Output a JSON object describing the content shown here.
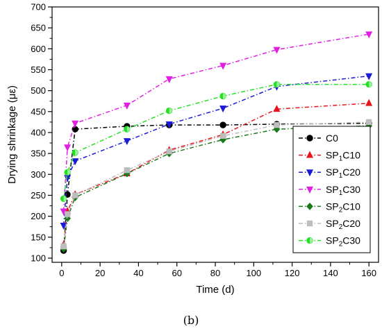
{
  "chart_data": {
    "type": "line",
    "title": "",
    "xlabel": "Time (d)",
    "ylabel": "Drying shrinkage (με)",
    "xlim": [
      -5,
      165
    ],
    "ylim": [
      90,
      700
    ],
    "xticks": [
      0,
      20,
      40,
      60,
      80,
      100,
      120,
      140,
      160
    ],
    "yticks": [
      100,
      150,
      200,
      250,
      300,
      350,
      400,
      450,
      500,
      550,
      600,
      650,
      700
    ],
    "grid": false,
    "legend_position": "bottom-right",
    "series": [
      {
        "name": "C0",
        "label": {
          "pre": "C0",
          "sub": "",
          "post": ""
        },
        "color": "#000000",
        "marker": "circle",
        "dash": "6,3,1.5,3",
        "points": [
          [
            1,
            118
          ],
          [
            3,
            252
          ],
          [
            7,
            408
          ],
          [
            34,
            415
          ],
          [
            56,
            418
          ],
          [
            84,
            418
          ],
          [
            112,
            420
          ],
          [
            160,
            422
          ]
        ]
      },
      {
        "name": "SP1C10",
        "label": {
          "pre": "SP",
          "sub": "1",
          "post": "C10"
        },
        "color": "#e8141b",
        "marker": "triangle-up",
        "dash": "6,3,1.5,3",
        "points": [
          [
            1,
            132
          ],
          [
            3,
            212
          ],
          [
            7,
            252
          ],
          [
            34,
            302
          ],
          [
            56,
            358
          ],
          [
            84,
            395
          ],
          [
            112,
            456
          ],
          [
            160,
            470
          ]
        ]
      },
      {
        "name": "SP1C20",
        "label": {
          "pre": "SP",
          "sub": "1",
          "post": "C20"
        },
        "color": "#1a1ad8",
        "marker": "triangle-down",
        "dash": "6,3,1.5,3",
        "points": [
          [
            1,
            178
          ],
          [
            3,
            292
          ],
          [
            7,
            332
          ],
          [
            34,
            380
          ],
          [
            56,
            420
          ],
          [
            84,
            458
          ],
          [
            112,
            510
          ],
          [
            160,
            535
          ]
        ]
      },
      {
        "name": "SP1C30",
        "label": {
          "pre": "SP",
          "sub": "1",
          "post": "C30"
        },
        "color": "#e020e0",
        "marker": "triangle-down",
        "dash": "6,3,1.5,3",
        "points": [
          [
            1,
            212
          ],
          [
            3,
            365
          ],
          [
            7,
            422
          ],
          [
            34,
            465
          ],
          [
            56,
            528
          ],
          [
            84,
            560
          ],
          [
            112,
            598
          ],
          [
            160,
            635
          ]
        ]
      },
      {
        "name": "SP2C10",
        "label": {
          "pre": "SP",
          "sub": "2",
          "post": "C10"
        },
        "color": "#1a7a1a",
        "marker": "diamond",
        "dash": "6,3,1.5,3",
        "points": [
          [
            1,
            122
          ],
          [
            3,
            195
          ],
          [
            7,
            245
          ],
          [
            34,
            302
          ],
          [
            56,
            350
          ],
          [
            84,
            383
          ],
          [
            112,
            408
          ],
          [
            160,
            416
          ]
        ]
      },
      {
        "name": "SP2C20",
        "label": {
          "pre": "SP",
          "sub": "2",
          "post": "C20"
        },
        "color": "#bdbdbd",
        "marker": "square",
        "dash": "6,3,1.5,3",
        "points": [
          [
            1,
            128
          ],
          [
            3,
            205
          ],
          [
            7,
            250
          ],
          [
            34,
            310
          ],
          [
            56,
            355
          ],
          [
            84,
            392
          ],
          [
            112,
            418
          ],
          [
            160,
            425
          ]
        ]
      },
      {
        "name": "SP2C30",
        "label": {
          "pre": "SP",
          "sub": "2",
          "post": "C30"
        },
        "color": "#22e022",
        "marker": "circle-half",
        "dash": "6,3,1.5,3",
        "points": [
          [
            1,
            242
          ],
          [
            3,
            305
          ],
          [
            7,
            352
          ],
          [
            34,
            408
          ],
          [
            56,
            452
          ],
          [
            84,
            487
          ],
          [
            112,
            515
          ],
          [
            160,
            515
          ]
        ]
      }
    ]
  },
  "caption": "(b)"
}
